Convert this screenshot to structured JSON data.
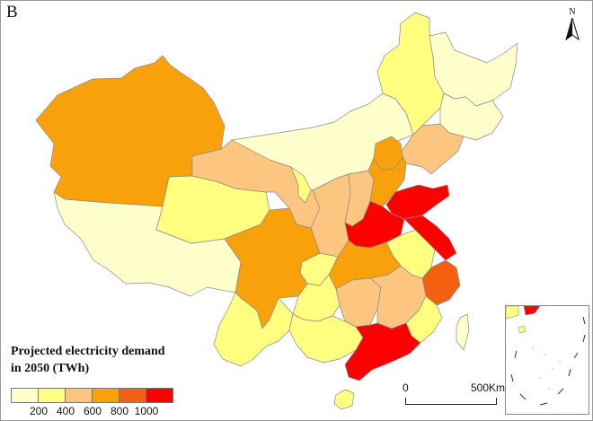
{
  "panel_label": "B",
  "north_letter": "N",
  "legend": {
    "title_line1": "Projected electricity demand",
    "title_line2": "in 2050 (TWh)",
    "ticks": [
      "200",
      "400",
      "600",
      "800",
      "1000"
    ],
    "colors": [
      "#ffffcc",
      "#ffff80",
      "#fcc580",
      "#f9a10a",
      "#f36010",
      "#ff0000"
    ]
  },
  "scale_bar": {
    "start_label": "0",
    "end_label": "500Km"
  },
  "region_colors": {
    "class1": "#ffffcc",
    "class2": "#ffff80",
    "class3": "#fcc580",
    "class4": "#f9a10a",
    "class5": "#f36010",
    "class6": "#ff0000",
    "border": "#8a8a8a"
  }
}
